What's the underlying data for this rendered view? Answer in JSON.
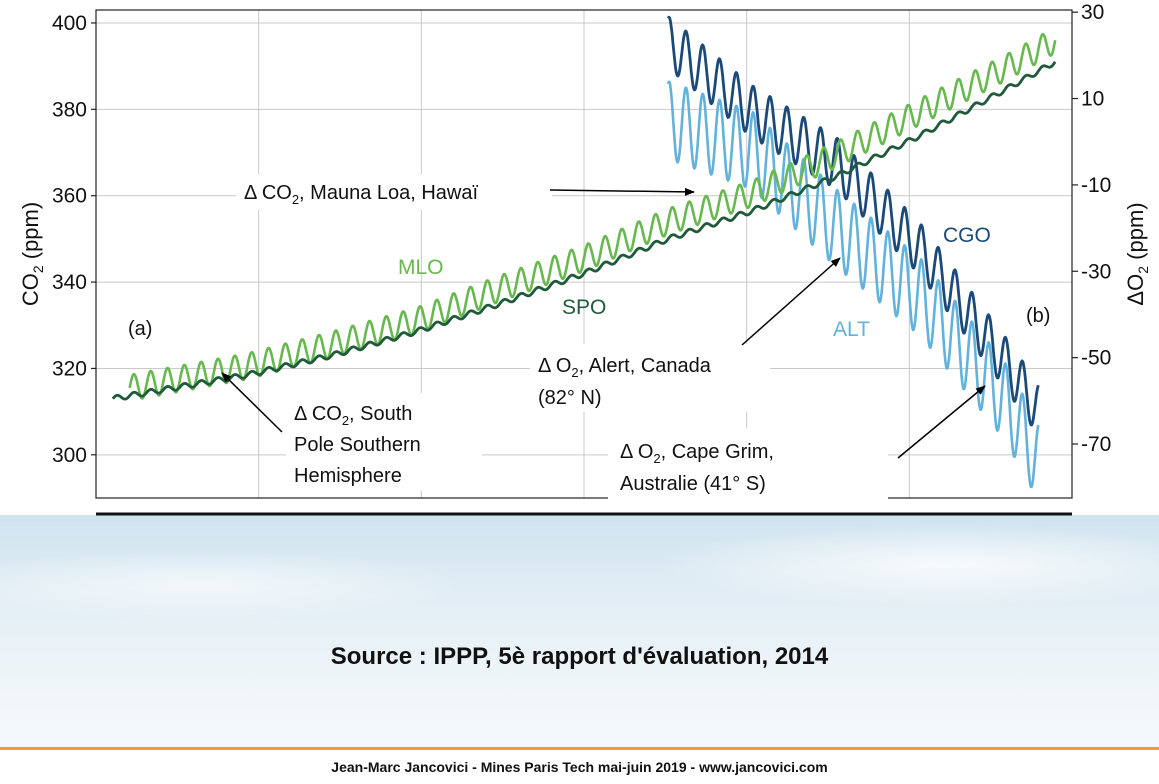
{
  "chart_data": {
    "type": "line",
    "y_left_label": "CO2 (ppm)",
    "y_left_label_base": "CO",
    "y_left_label_sub": "2",
    "y_left_label_unit": " (ppm)",
    "y_right_label": "ΔO2 (ppm)",
    "y_right_label_base": "ΔO",
    "y_right_label_sub": "2",
    "y_right_label_unit": " (ppm)",
    "ylim_left": [
      290,
      403
    ],
    "ylim_right": [
      -82.5,
      30.5
    ],
    "xlim": [
      1956,
      2014
    ],
    "left_ticks": [
      "300",
      "320",
      "340",
      "360",
      "380",
      "400"
    ],
    "right_ticks": [
      "-70",
      "-50",
      "-30",
      "-10",
      "10",
      "30"
    ],
    "grid": true,
    "panel_labels": [
      "(a)",
      "(b)"
    ],
    "series": [
      {
        "name": "MLO",
        "axis": "left",
        "color": "#67b84f",
        "x": [
          1958,
          1965,
          1970,
          1975,
          1980,
          1985,
          1990,
          1995,
          2000,
          2005,
          2010,
          2013
        ],
        "y": [
          315.5,
          320.5,
          325.5,
          331,
          338.5,
          345.5,
          354,
          360.5,
          369.5,
          379.5,
          389.5,
          396
        ]
      },
      {
        "name": "SPO",
        "axis": "left",
        "color": "#1f5a3a",
        "x": [
          1957,
          1965,
          1970,
          1975,
          1980,
          1985,
          1990,
          1995,
          2000,
          2005,
          2010,
          2013
        ],
        "y": [
          313,
          318.5,
          323,
          328.5,
          335,
          342,
          350,
          356.5,
          364.5,
          374,
          384.5,
          391
        ]
      },
      {
        "name": "ALT",
        "axis": "right",
        "color": "#62b2dc",
        "x": [
          1990,
          1995,
          2000,
          2005,
          2010,
          2012
        ],
        "y": [
          5,
          -2,
          -20,
          -36,
          -60,
          -74
        ]
      },
      {
        "name": "CGO",
        "axis": "right",
        "color": "#1c4a78",
        "x": [
          1990,
          1995,
          2000,
          2005,
          2010,
          2012
        ],
        "y": [
          23,
          7,
          -5,
          -25,
          -51,
          -62
        ]
      }
    ],
    "series_labels": [
      "MLO",
      "SPO",
      "ALT",
      "CGO"
    ],
    "annotations": {
      "mlo": "Δ CO2, Mauna Loa, Hawaï",
      "mlo_pre": "Δ CO",
      "mlo_sub": "2",
      "mlo_post": ", Mauna Loa, Hawaï",
      "spo_l1_pre": "Δ CO",
      "spo_l1_sub": "2",
      "spo_l1_post": ", South",
      "spo_l2": "Pole Southern",
      "spo_l3": "Hemisphere",
      "alt_l1_pre": "Δ O",
      "alt_l1_sub": "2",
      "alt_l1_post": ", Alert, Canada",
      "alt_l2": "(82°  N)",
      "cgo_l1_pre": "Δ O",
      "cgo_l1_sub": "2",
      "cgo_l1_post": ", Cape Grim,",
      "cgo_l2": "Australie (41°  S)"
    }
  },
  "source": "Source : IPPP, 5è rapport d'évaluation, 2014",
  "footer": "Jean-Marc Jancovici - Mines Paris Tech mai-juin 2019 - www.jancovici.com"
}
